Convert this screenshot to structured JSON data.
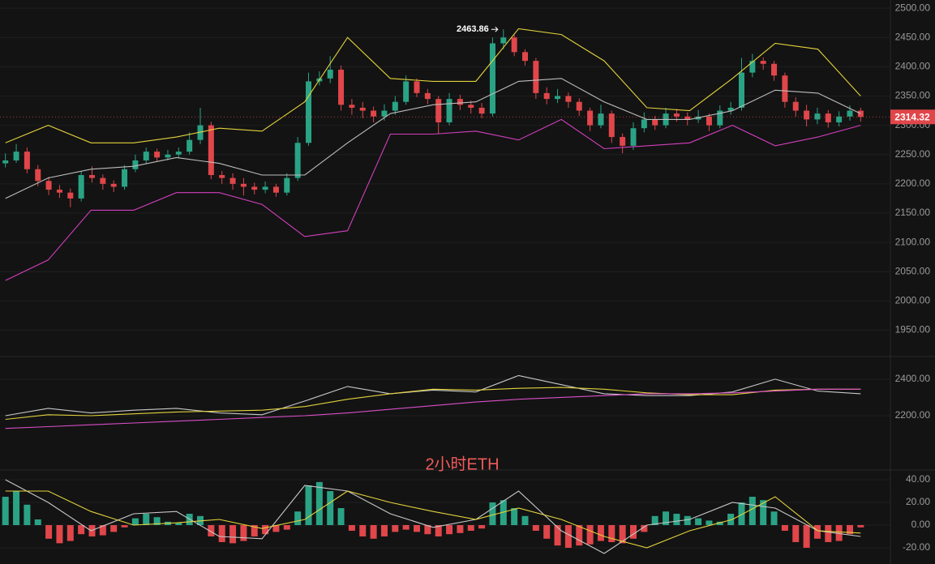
{
  "chart_data": [
    {
      "type": "candlestick",
      "ylim": [
        1905,
        2514
      ],
      "yticks": [
        {
          "value": 2500,
          "label": "2500.00"
        },
        {
          "value": 2450,
          "label": "2450.00"
        },
        {
          "value": 2400,
          "label": "2400.00"
        },
        {
          "value": 2350,
          "label": "2350.00"
        },
        {
          "value": 2300,
          "label": "2300.00"
        },
        {
          "value": 2250,
          "label": "2250.00"
        },
        {
          "value": 2200,
          "label": "2200.00"
        },
        {
          "value": 2150,
          "label": "2150.00"
        },
        {
          "value": 2100,
          "label": "2100.00"
        },
        {
          "value": 2050,
          "label": "2050.00"
        },
        {
          "value": 2000,
          "label": "2000.00"
        },
        {
          "value": 1950,
          "label": "1950.00"
        }
      ],
      "grid": true,
      "up_color": "#2aa385",
      "down_color": "#e0464a",
      "open": [
        2235,
        2240,
        2255,
        2225,
        2205,
        2190,
        2185,
        2175,
        2215,
        2210,
        2200,
        2195,
        2225,
        2240,
        2255,
        2245,
        2250,
        2255,
        2275,
        2300,
        2215,
        2210,
        2200,
        2195,
        2190,
        2195,
        2185,
        2210,
        2270,
        2375,
        2380,
        2395,
        2335,
        2330,
        2325,
        2315,
        2325,
        2340,
        2375,
        2355,
        2345,
        2305,
        2345,
        2335,
        2330,
        2320,
        2440,
        2450,
        2425,
        2410,
        2355,
        2345,
        2350,
        2340,
        2325,
        2300,
        2320,
        2280,
        2265,
        2295,
        2310,
        2300,
        2320,
        2315,
        2310,
        2315,
        2300,
        2325,
        2330,
        2390,
        2410,
        2405,
        2385,
        2340,
        2325,
        2310,
        2320,
        2305,
        2315,
        2325
      ],
      "high": [
        2252,
        2268,
        2262,
        2232,
        2212,
        2198,
        2192,
        2222,
        2230,
        2216,
        2206,
        2232,
        2250,
        2262,
        2260,
        2258,
        2262,
        2288,
        2330,
        2306,
        2222,
        2218,
        2210,
        2202,
        2204,
        2200,
        2218,
        2280,
        2390,
        2392,
        2418,
        2402,
        2345,
        2340,
        2332,
        2336,
        2350,
        2385,
        2380,
        2362,
        2350,
        2355,
        2352,
        2342,
        2338,
        2450,
        2463.86,
        2455,
        2430,
        2415,
        2365,
        2362,
        2356,
        2346,
        2330,
        2335,
        2325,
        2286,
        2305,
        2322,
        2316,
        2330,
        2328,
        2322,
        2326,
        2320,
        2334,
        2340,
        2415,
        2422,
        2416,
        2410,
        2390,
        2348,
        2335,
        2330,
        2326,
        2324,
        2334,
        2330
      ],
      "low": [
        2228,
        2236,
        2218,
        2196,
        2181,
        2176,
        2160,
        2170,
        2202,
        2190,
        2186,
        2190,
        2220,
        2235,
        2238,
        2240,
        2244,
        2250,
        2268,
        2208,
        2200,
        2190,
        2180,
        2182,
        2184,
        2178,
        2180,
        2205,
        2265,
        2368,
        2372,
        2325,
        2318,
        2312,
        2305,
        2308,
        2318,
        2335,
        2348,
        2336,
        2285,
        2300,
        2326,
        2320,
        2312,
        2315,
        2430,
        2418,
        2402,
        2345,
        2336,
        2338,
        2330,
        2316,
        2290,
        2295,
        2270,
        2252,
        2258,
        2288,
        2292,
        2295,
        2306,
        2300,
        2304,
        2290,
        2295,
        2318,
        2325,
        2382,
        2395,
        2376,
        2330,
        2315,
        2298,
        2302,
        2296,
        2298,
        2308,
        2306
      ],
      "close": [
        2240,
        2255,
        2225,
        2205,
        2190,
        2185,
        2175,
        2215,
        2210,
        2200,
        2195,
        2225,
        2240,
        2255,
        2245,
        2250,
        2255,
        2275,
        2300,
        2215,
        2210,
        2200,
        2195,
        2190,
        2195,
        2185,
        2210,
        2270,
        2375,
        2380,
        2395,
        2335,
        2330,
        2325,
        2315,
        2325,
        2340,
        2375,
        2355,
        2345,
        2305,
        2345,
        2335,
        2330,
        2320,
        2440,
        2450,
        2425,
        2410,
        2355,
        2345,
        2350,
        2340,
        2325,
        2300,
        2320,
        2280,
        2265,
        2295,
        2310,
        2300,
        2320,
        2315,
        2310,
        2315,
        2300,
        2325,
        2330,
        2390,
        2410,
        2405,
        2385,
        2340,
        2325,
        2310,
        2320,
        2305,
        2315,
        2325,
        2314.32
      ],
      "last_price": 2314.32,
      "high_label": 2463.86,
      "series": [
        {
          "color": "#e3d23c",
          "values": [
            2270,
            2300,
            2270,
            2270,
            2280,
            2295,
            2290,
            2340,
            2450,
            2380,
            2375,
            2375,
            2465,
            2455,
            2410,
            2330,
            2325,
            2380,
            2440,
            2430,
            2350
          ]
        },
        {
          "color": "#bdbdbd",
          "values": [
            2175,
            2210,
            2225,
            2230,
            2245,
            2235,
            2215,
            2215,
            2270,
            2320,
            2335,
            2340,
            2375,
            2380,
            2340,
            2310,
            2310,
            2325,
            2360,
            2355,
            2320
          ]
        },
        {
          "color": "#d23fbd",
          "values": [
            2035,
            2070,
            2155,
            2155,
            2185,
            2185,
            2165,
            2110,
            2120,
            2285,
            2285,
            2290,
            2275,
            2310,
            2260,
            2265,
            2270,
            2300,
            2265,
            2280,
            2300
          ]
        }
      ]
    },
    {
      "type": "line",
      "ylim": [
        1902,
        2502
      ],
      "yticks": [
        {
          "value": 2400,
          "label": "2400.00"
        },
        {
          "value": 2200,
          "label": "2200.00"
        }
      ],
      "grid": true,
      "title": "2小时ETH",
      "series": [
        {
          "color": "#c8c8c8",
          "values": [
            2200,
            2240,
            2215,
            2230,
            2240,
            2215,
            2205,
            2280,
            2360,
            2320,
            2340,
            2330,
            2420,
            2370,
            2320,
            2310,
            2310,
            2330,
            2400,
            2335,
            2320
          ]
        },
        {
          "color": "#e3d23c",
          "values": [
            2180,
            2205,
            2200,
            2210,
            2220,
            2225,
            2230,
            2250,
            2290,
            2320,
            2345,
            2340,
            2350,
            2355,
            2345,
            2325,
            2315,
            2315,
            2340,
            2345,
            2345
          ]
        },
        {
          "color": "#d94fc9",
          "values": [
            2130,
            2140,
            2150,
            2160,
            2170,
            2180,
            2190,
            2200,
            2215,
            2235,
            2255,
            2275,
            2290,
            2300,
            2310,
            2320,
            2320,
            2325,
            2335,
            2345,
            2345
          ]
        }
      ]
    },
    {
      "type": "bar",
      "ylim": [
        -34.3,
        48.6
      ],
      "yticks": [
        {
          "value": 40,
          "label": "40.00"
        },
        {
          "value": 20,
          "label": "20.00"
        },
        {
          "value": 0,
          "label": "0.00"
        },
        {
          "value": -20,
          "label": "-20.00"
        }
      ],
      "grid": true,
      "positive_color": "#2aa385",
      "negative_color": "#e0464a",
      "values": [
        25,
        30,
        18,
        5,
        -12,
        -16,
        -14,
        -8,
        -10,
        -9,
        -6,
        -2,
        6,
        10,
        7,
        3,
        2,
        10,
        8,
        -10,
        -15,
        -16,
        -14,
        -10,
        -8,
        -6,
        -4,
        12,
        35,
        38,
        30,
        15,
        -5,
        -10,
        -12,
        -10,
        -6,
        -4,
        -6,
        -8,
        -10,
        -8,
        -7,
        -5,
        -3,
        20,
        22,
        15,
        8,
        -5,
        -12,
        -18,
        -20,
        -18,
        -17,
        -14,
        -15,
        -16,
        -12,
        -6,
        8,
        12,
        10,
        8,
        6,
        4,
        3,
        10,
        20,
        25,
        22,
        12,
        -5,
        -15,
        -20,
        -12,
        -15,
        -14,
        -8,
        -2
      ],
      "series": [
        {
          "color": "#c8c8c8",
          "values": [
            40,
            20,
            -5,
            10,
            12,
            -10,
            -12,
            35,
            30,
            10,
            -2,
            5,
            30,
            -5,
            -25,
            0,
            5,
            20,
            15,
            -5,
            -10
          ]
        },
        {
          "color": "#e3d23c",
          "values": [
            30,
            30,
            12,
            0,
            2,
            5,
            -3,
            5,
            30,
            20,
            12,
            5,
            15,
            5,
            -10,
            -20,
            -5,
            5,
            25,
            -5,
            -7
          ]
        }
      ]
    }
  ]
}
